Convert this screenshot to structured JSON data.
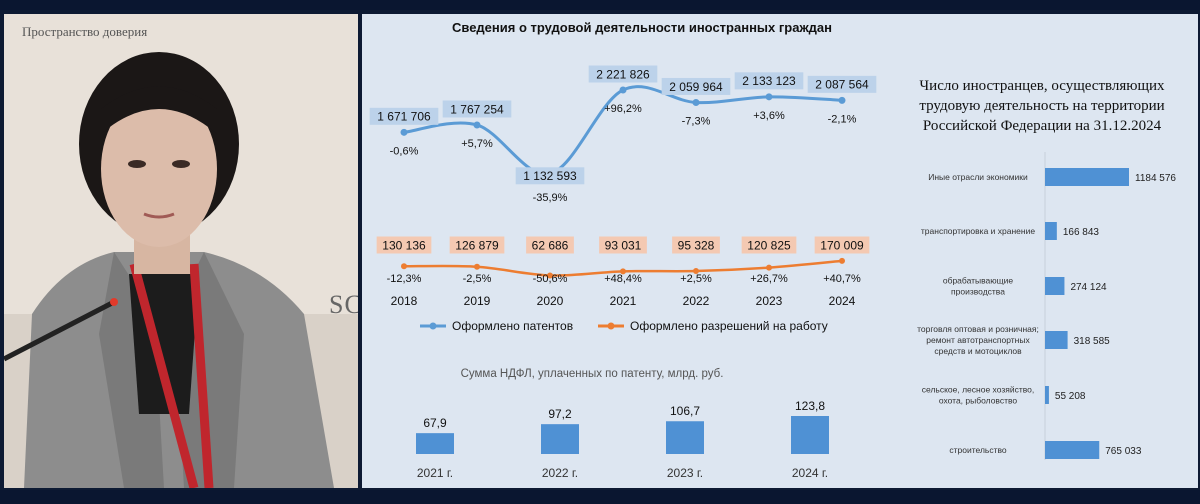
{
  "video": {
    "brand_text": "Пространство доверия",
    "logo_fragment": "SC"
  },
  "slide": {
    "title": "Сведения о трудовой деятельности иностранных граждан",
    "right_title": "Число иностранцев, осуществляющих трудовую деятельность на территории Российской Федерации на 31.12.2024"
  },
  "colors": {
    "patents": "#5b9bd5",
    "permits": "#ed7d31",
    "bars": "#4f91d4",
    "patent_label_bg": "#bcd2ea",
    "permit_label_bg": "#f4c9b2"
  },
  "chart_data": [
    {
      "type": "line",
      "x": [
        "2018",
        "2019",
        "2020",
        "2021",
        "2022",
        "2023",
        "2024"
      ],
      "series": [
        {
          "name": "Оформлено патентов",
          "values": [
            1671706,
            1767254,
            1132593,
            2221826,
            2059964,
            2133123,
            2087564
          ],
          "value_labels": [
            "1 671 706",
            "1 767 254",
            "1 132 593",
            "2 221 826",
            "2 059 964",
            "2 133 123",
            "2 087 564"
          ],
          "change_labels": [
            "-0,6%",
            "+5,7%",
            "-35,9%",
            "+96,2%",
            "-7,3%",
            "+3,6%",
            "-2,1%"
          ]
        },
        {
          "name": "Оформлено разрешений на работу",
          "values": [
            130136,
            126879,
            62686,
            93031,
            95328,
            120825,
            170009
          ],
          "value_labels": [
            "130 136",
            "126 879",
            "62 686",
            "93 031",
            "95 328",
            "120 825",
            "170 009"
          ],
          "change_labels": [
            "-12,3%",
            "-2,5%",
            "-50,6%",
            "+48,4%",
            "+2,5%",
            "+26,7%",
            "+40,7%"
          ]
        }
      ]
    },
    {
      "type": "bar",
      "title": "Сумма НДФЛ, уплаченных по патенту, млрд. руб.",
      "categories": [
        "2021 г.",
        "2022 г.",
        "2023 г.",
        "2024 г."
      ],
      "values": [
        67.9,
        97.2,
        106.7,
        123.8
      ],
      "value_labels": [
        "67,9",
        "97,2",
        "106,7",
        "123,8"
      ]
    },
    {
      "type": "bar",
      "orientation": "horizontal",
      "categories": [
        [
          "Иные отрасли экономики"
        ],
        [
          "транспортировка и хранение"
        ],
        [
          "обрабатывающие",
          "производства"
        ],
        [
          "торговля оптовая и розничная;",
          "ремонт автотранспортных",
          "средств и мотоциклов"
        ],
        [
          "сельское, лесное хозяйство,",
          "охота, рыболовство"
        ],
        [
          "строительство"
        ]
      ],
      "values": [
        1184576,
        166843,
        274124,
        318585,
        55208,
        765033
      ],
      "value_labels": [
        "1184 576",
        "166 843",
        "274 124",
        "318 585",
        "55 208",
        "765 033"
      ]
    }
  ]
}
